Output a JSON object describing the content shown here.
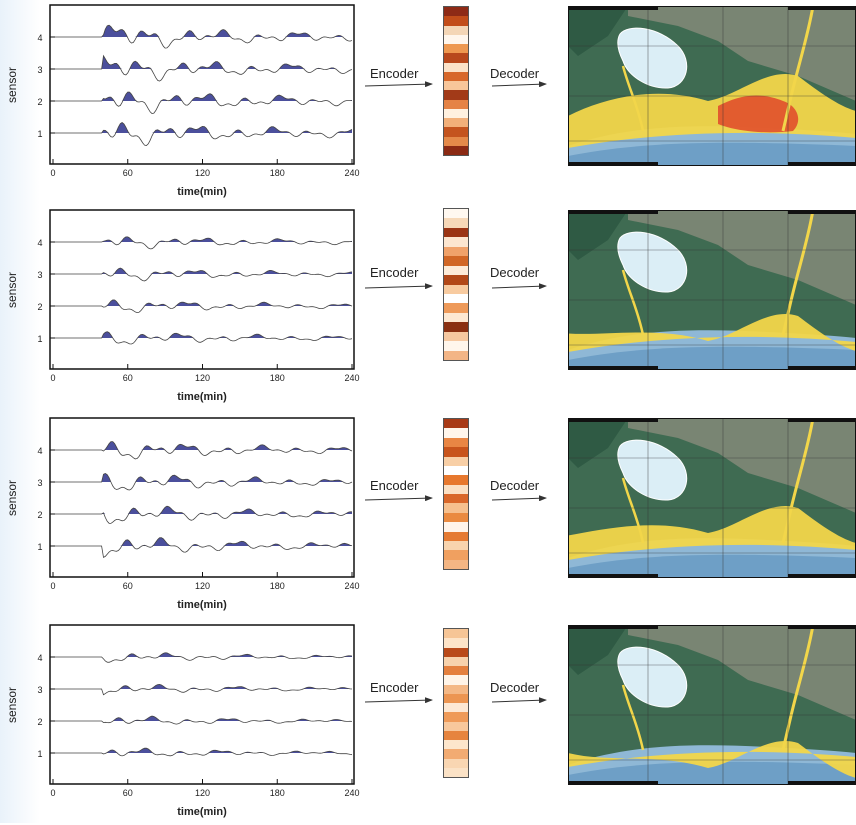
{
  "labels": {
    "encoder": "Encoder",
    "decoder": "Decoder",
    "ylabel": "sensor",
    "xlabel": "time(min)",
    "xticks": [
      "0",
      "60",
      "120",
      "180",
      "240"
    ],
    "yticks": [
      "4",
      "3",
      "2",
      "1"
    ]
  },
  "rows": [
    {
      "amp": 1.0,
      "code": [
        "#8e2a16",
        "#c24d1a",
        "#f4d6b6",
        "#fff6ec",
        "#ee9850",
        "#b8481c",
        "#fbe2c8",
        "#d7672a",
        "#f8c69a",
        "#a23a18",
        "#e58346",
        "#fff1e0",
        "#f2b07a",
        "#c4541f",
        "#e48a4a",
        "#8b2a14"
      ]
    },
    {
      "amp": 0.55,
      "code": [
        "#fff8f0",
        "#f6d8b8",
        "#9a3414",
        "#fce6d0",
        "#f0a26a",
        "#d16726",
        "#fdebd8",
        "#b24818",
        "#f8cba0",
        "#ffffff",
        "#ee9a5a",
        "#fde8d2",
        "#8a3012",
        "#f6c8a0",
        "#fff6ec",
        "#f3b586"
      ]
    },
    {
      "amp": 0.75,
      "code": [
        "#a83a16",
        "#fff6ec",
        "#e98644",
        "#c8541c",
        "#f8cfa6",
        "#ffffff",
        "#e7782e",
        "#fbe0c4",
        "#d9672a",
        "#f6c08e",
        "#ea8a40",
        "#fff4ea",
        "#e57a32",
        "#f8d4ae",
        "#f0a060",
        "#f4b684"
      ]
    },
    {
      "amp": 0.4,
      "code": [
        "#f6c596",
        "#fde4c8",
        "#b94a1a",
        "#f7d2ac",
        "#e4803e",
        "#fff4e8",
        "#f4b886",
        "#ec9552",
        "#fde8d4",
        "#ef9a58",
        "#f8c89c",
        "#e6843e",
        "#fde6cc",
        "#f2ab72",
        "#f9d6b2",
        "#fbe2c6"
      ]
    }
  ]
}
